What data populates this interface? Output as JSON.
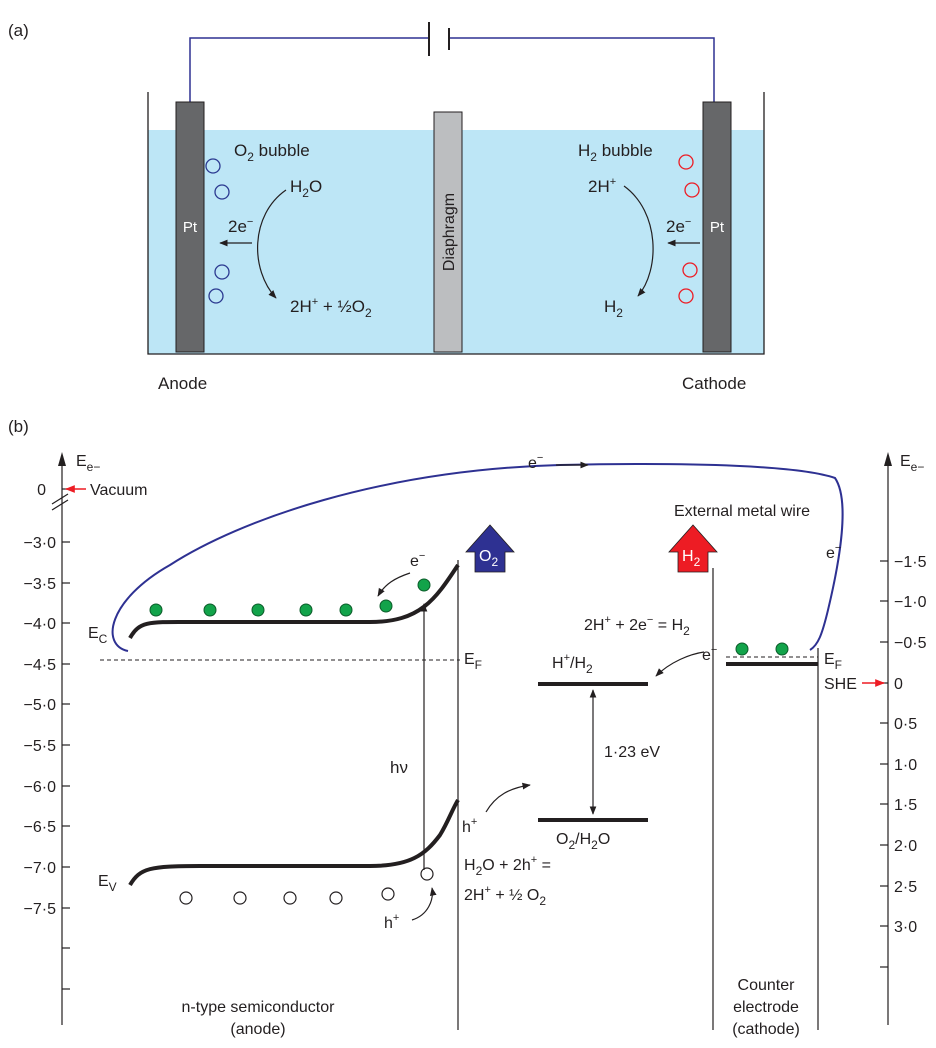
{
  "panel_a": {
    "label": "(a)",
    "anode_label": "Anode",
    "cathode_label": "Cathode",
    "left_electrode": "Pt",
    "right_electrode": "Pt",
    "diaphragm": "Diaphragm",
    "o2_bubble": {
      "base": "O",
      "sub": "2",
      "rest": " bubble"
    },
    "h2_bubble": {
      "base": "H",
      "sub": "2",
      "rest": " bubble"
    },
    "anode_reactant": {
      "base": "H",
      "sub": "2",
      "rest": "O"
    },
    "anode_electrons": {
      "base": "2e",
      "sup": "−"
    },
    "anode_products": {
      "a": "2H",
      "sup": "+",
      "b": " + ½O",
      "sub": "2"
    },
    "cathode_reactant": {
      "base": "2H",
      "sup": "+"
    },
    "cathode_electrons": {
      "base": "2e",
      "sup": "−"
    },
    "cathode_product": {
      "base": "H",
      "sub": "2"
    }
  },
  "panel_b": {
    "label": "(b)",
    "left_axis": {
      "title": {
        "base": "E",
        "sub": "e−"
      },
      "ticks": [
        "0",
        "−3·0",
        "−3·5",
        "−4·0",
        "−4·5",
        "−5·0",
        "−5·5",
        "−6·0",
        "−6·5",
        "−7·0",
        "−7·5"
      ],
      "vacuum": "Vacuum"
    },
    "right_axis": {
      "title": {
        "base": "E",
        "sub": "e−"
      },
      "ticks": [
        "−1·5",
        "−1·0",
        "−0·5",
        "0",
        "0·5",
        "1·0",
        "1·5",
        "2·0",
        "2·5",
        "3·0"
      ],
      "she": "SHE"
    },
    "wire_electron": {
      "base": "e",
      "sup": "−"
    },
    "wire_electron_right": {
      "base": "e",
      "sup": "−"
    },
    "external_wire": "External metal wire",
    "ec": {
      "base": "E",
      "sub": "C"
    },
    "ev": {
      "base": "E",
      "sub": "V"
    },
    "ef_left": {
      "base": "E",
      "sub": "F"
    },
    "ef_right": {
      "base": "E",
      "sub": "F"
    },
    "cb_electron": {
      "base": "e",
      "sup": "−"
    },
    "counter_electron": {
      "base": "e",
      "sup": "−"
    },
    "hv": "hν",
    "hole_top": {
      "base": "h",
      "sup": "+"
    },
    "hole_bottom": {
      "base": "h",
      "sup": "+"
    },
    "o2_arrow": {
      "base": "O",
      "sub": "2"
    },
    "h2_arrow": {
      "base": "H",
      "sub": "2"
    },
    "h2_reaction": {
      "a": "2H",
      "sup1": "+",
      "b": " + 2e",
      "sup2": "−",
      "c": " = H",
      "sub": "2"
    },
    "h_level": {
      "a": "H",
      "sup": "+",
      "b": "/H",
      "sub": "2"
    },
    "o_level": {
      "a": "O",
      "sub1": "2",
      "b": "/H",
      "sub2": "2",
      "c": "O"
    },
    "gap": "1·23 eV",
    "o2_reaction_1": {
      "a": "H",
      "sub": "2",
      "b": "O + 2h",
      "sup": "+",
      "c": " ="
    },
    "o2_reaction_2": {
      "a": "2H",
      "sup": "+",
      "b": " + ½ O",
      "sub": "2"
    },
    "semiconductor_1": "n-type semiconductor",
    "semiconductor_2": "(anode)",
    "counter_1": "Counter",
    "counter_2": "electrode",
    "counter_3": "(cathode)"
  },
  "colors": {
    "water": "#bde6f6",
    "electrode": "#666769",
    "diaphragm": "#bcbec0",
    "wire": "#2e3192",
    "o2_bubble": "#2b3990",
    "h2_bubble": "#ed1c24",
    "electron_dot": "#12a34a",
    "o2_arrow": "#2e3192",
    "h2_arrow": "#ed1c24",
    "pointer": "#ed1c24"
  }
}
